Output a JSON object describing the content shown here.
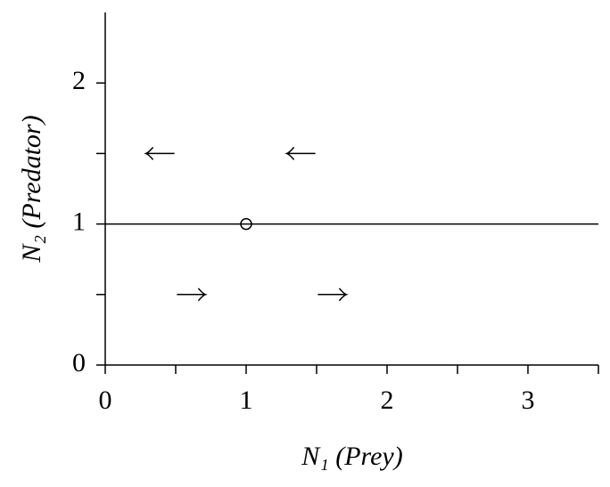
{
  "chart_data": {
    "type": "phase",
    "xlabel": "N₁ (Prey)",
    "ylabel": "N₂ (Predator)",
    "xlim": [
      0,
      3.5
    ],
    "ylim": [
      0,
      2.5
    ],
    "xticks": [
      0,
      1,
      2,
      3
    ],
    "yticks": [
      0,
      1,
      2
    ],
    "xminorticks": [
      0.5,
      1.5,
      2.5,
      3.5
    ],
    "yminorticks": [
      0.5,
      1.5
    ],
    "hlines": [
      1
    ],
    "points": [
      {
        "x": 1,
        "y": 1
      }
    ],
    "arrows": [
      {
        "x": 0.39,
        "y": 1.5,
        "direction": "left"
      },
      {
        "x": 1.39,
        "y": 1.5,
        "direction": "left"
      },
      {
        "x": 0.61,
        "y": 0.5,
        "direction": "right"
      },
      {
        "x": 1.61,
        "y": 0.5,
        "direction": "right"
      }
    ],
    "color": "#000000"
  }
}
